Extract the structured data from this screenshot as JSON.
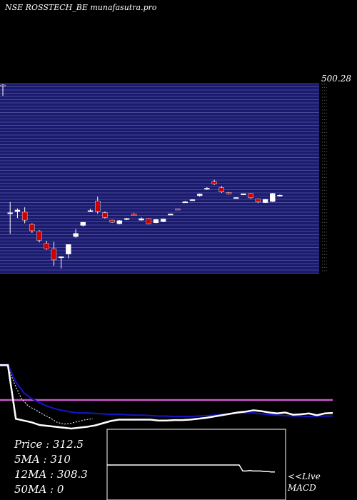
{
  "header": {
    "title": "NSE ROSSTECH_BE munafasutra.pro"
  },
  "colors": {
    "background": "#000000",
    "grid_band": "#1a1a6e",
    "grid_line": "#7777bb",
    "up_candle": "#ffffff",
    "down_candle": "#cc0000",
    "ma_fast": "#ffffff",
    "ma_slow": "#1515c8",
    "ma_dotted": "#ffffff",
    "level_line": "#cc55cc",
    "macd_box": "#ffffff"
  },
  "price_axis": {
    "top_label": "500.28"
  },
  "info": {
    "price": "Price   : 312.5",
    "ma5": "5MA : 310",
    "ma12": "12MA : 308.3",
    "ma50": "50MA : 0"
  },
  "macd": {
    "label1": "<<Live",
    "label2": "MACD"
  },
  "chart_data": {
    "type": "candlestick",
    "title": "NSE ROSSTECH_BE munafasutra.pro",
    "y_label_top": "500.28",
    "ylim": [
      148,
      500.28
    ],
    "candles": [
      {
        "o": 500.28,
        "h": 502.0,
        "l": 480.0,
        "c": 499.0
      },
      {
        "o": 258.0,
        "h": 280.0,
        "l": 220.0,
        "c": 260.0
      },
      {
        "o": 262.0,
        "h": 268.0,
        "l": 250.0,
        "c": 265.0
      },
      {
        "o": 261.0,
        "h": 270.0,
        "l": 240.0,
        "c": 246.0
      },
      {
        "o": 238.0,
        "h": 240.0,
        "l": 222.0,
        "c": 226.0
      },
      {
        "o": 225.0,
        "h": 227.0,
        "l": 204.0,
        "c": 208.0
      },
      {
        "o": 202.0,
        "h": 207.0,
        "l": 190.0,
        "c": 192.0
      },
      {
        "o": 192.0,
        "h": 205.0,
        "l": 160.0,
        "c": 171.0
      },
      {
        "o": 175.0,
        "h": 178.0,
        "l": 155.0,
        "c": 177.0
      },
      {
        "o": 182.0,
        "h": 200.0,
        "l": 174.0,
        "c": 200.0
      },
      {
        "o": 215.0,
        "h": 229.0,
        "l": 213.0,
        "c": 221.0
      },
      {
        "o": 236.0,
        "h": 242.0,
        "l": 234.0,
        "c": 242.0
      },
      {
        "o": 262.0,
        "h": 267.0,
        "l": 261.0,
        "c": 264.0
      },
      {
        "o": 282.0,
        "h": 290.0,
        "l": 258.0,
        "c": 262.0
      },
      {
        "o": 260.0,
        "h": 262.0,
        "l": 249.0,
        "c": 251.0
      },
      {
        "o": 246.0,
        "h": 246.5,
        "l": 241.0,
        "c": 242.0
      },
      {
        "o": 239.0,
        "h": 246.0,
        "l": 238.0,
        "c": 245.0
      },
      {
        "o": 247.0,
        "h": 250.0,
        "l": 246.0,
        "c": 249.0
      },
      {
        "o": 257.0,
        "h": 259.0,
        "l": 254.0,
        "c": 254.5
      },
      {
        "o": 246.0,
        "h": 251.0,
        "l": 245.0,
        "c": 248.5
      },
      {
        "o": 249.0,
        "h": 250.0,
        "l": 238.0,
        "c": 239.0
      },
      {
        "o": 241.0,
        "h": 248.0,
        "l": 240.0,
        "c": 247.0
      },
      {
        "o": 243.0,
        "h": 249.0,
        "l": 242.0,
        "c": 248.0
      },
      {
        "o": 257.0,
        "h": 258.0,
        "l": 256.0,
        "c": 257.5
      },
      {
        "o": 267.0,
        "h": 268.0,
        "l": 265.0,
        "c": 266.5
      },
      {
        "o": 280.0,
        "h": 282.0,
        "l": 279.0,
        "c": 280.5
      },
      {
        "o": 284.0,
        "h": 285.0,
        "l": 283.0,
        "c": 284.5
      },
      {
        "o": 292.0,
        "h": 296.0,
        "l": 290.0,
        "c": 295.0
      },
      {
        "o": 305.0,
        "h": 308.0,
        "l": 303.0,
        "c": 306.0
      },
      {
        "o": 318.0,
        "h": 322.0,
        "l": 312.0,
        "c": 314.0
      },
      {
        "o": 307.0,
        "h": 310.0,
        "l": 297.0,
        "c": 299.0
      },
      {
        "o": 298.0,
        "h": 299.0,
        "l": 294.0,
        "c": 295.0
      },
      {
        "o": 288.0,
        "h": 289.0,
        "l": 287.0,
        "c": 288.5
      },
      {
        "o": 295.0,
        "h": 296.0,
        "l": 294.0,
        "c": 295.5
      },
      {
        "o": 296.0,
        "h": 297.0,
        "l": 286.0,
        "c": 288.0
      },
      {
        "o": 286.0,
        "h": 287.0,
        "l": 278.0,
        "c": 280.0
      },
      {
        "o": 279.0,
        "h": 286.0,
        "l": 278.0,
        "c": 285.0
      },
      {
        "o": 281.0,
        "h": 297.0,
        "l": 280.0,
        "c": 296.0
      },
      {
        "o": 291.0,
        "h": 294.0,
        "l": 290.0,
        "c": 293.0
      }
    ],
    "indicator": {
      "ma_fast": [
        300,
        300,
        180,
        176,
        172,
        166,
        164,
        162,
        160,
        158,
        160,
        162,
        165,
        170,
        175,
        178,
        178,
        178,
        178,
        178,
        176,
        176,
        177,
        177,
        178,
        180,
        182,
        185,
        188,
        191,
        194,
        196,
        199,
        197,
        194,
        192,
        194,
        189,
        190,
        192,
        188,
        192,
        193
      ],
      "ma_slow": [
        302,
        302,
        262,
        238,
        225,
        216,
        208,
        202,
        198,
        195,
        193,
        193,
        192,
        191,
        190,
        190,
        189,
        188,
        188,
        187,
        186,
        186,
        185,
        185,
        185,
        186,
        187,
        188,
        190,
        191,
        193,
        193,
        193,
        191,
        189,
        188,
        187,
        186,
        186,
        185,
        186,
        186,
        186
      ],
      "ma_dotted": [
        300,
        300,
        260,
        225,
        208,
        200,
        190,
        182,
        172,
        168,
        170,
        174,
        178,
        180
      ],
      "level": 222
    },
    "macd_panel": {
      "series": [
        100,
        100,
        100,
        100,
        100,
        100,
        100,
        100,
        100,
        100,
        100,
        100,
        100,
        100,
        100,
        100,
        100,
        100,
        100,
        100,
        100,
        100,
        100,
        100,
        100,
        100,
        100,
        100,
        100,
        100,
        100,
        100,
        100,
        100,
        100,
        100,
        100,
        100,
        88,
        88,
        89,
        88,
        88,
        88,
        87,
        87,
        86,
        86
      ]
    }
  }
}
